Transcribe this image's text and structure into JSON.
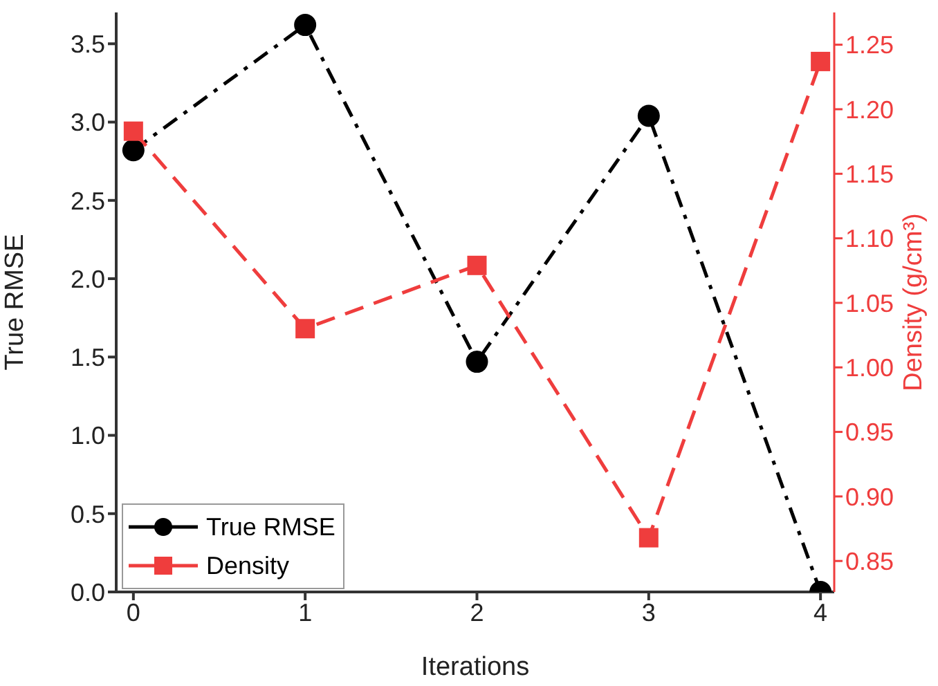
{
  "chart_data": {
    "type": "line",
    "xlabel": "Iterations",
    "ylabel": "True RMSE",
    "y2label": "Density (g/cm³)",
    "x": [
      0,
      1,
      2,
      3,
      4
    ],
    "series": [
      {
        "name": "True RMSE",
        "color": "#000000",
        "values": [
          2.82,
          3.62,
          1.47,
          3.04,
          0
        ],
        "marker": "circle",
        "line_style": "dashdot"
      },
      {
        "name": "Density",
        "color": "#ef3d3d",
        "values": [
          1.183,
          1.03,
          1.079,
          0.868,
          1.237
        ],
        "marker": "square",
        "line_style": "dashed",
        "axis": "y2"
      }
    ],
    "xlim": [
      -0.1,
      4.08
    ],
    "xticks": [
      0,
      1,
      2,
      3,
      4
    ],
    "ylim": [
      0,
      3.7
    ],
    "yticks": [
      {
        "value": 0,
        "label": "0.0"
      },
      0.5,
      {
        "value": 1,
        "label": "1.0"
      },
      1.5,
      {
        "value": 2,
        "label": "2.0"
      },
      2.5,
      {
        "value": 3,
        "label": "3.0"
      },
      3.5
    ],
    "y2lim": [
      0.826,
      1.275
    ],
    "y2ticks": [
      0.85,
      {
        "value": 0.9,
        "label": "0.90"
      },
      0.95,
      {
        "value": 1,
        "label": "1.00"
      },
      1.05,
      {
        "value": 1.1,
        "label": "1.10"
      },
      1.15,
      {
        "value": 1.2,
        "label": "1.20"
      },
      1.25
    ],
    "grid": false,
    "legend": "bottom left"
  }
}
